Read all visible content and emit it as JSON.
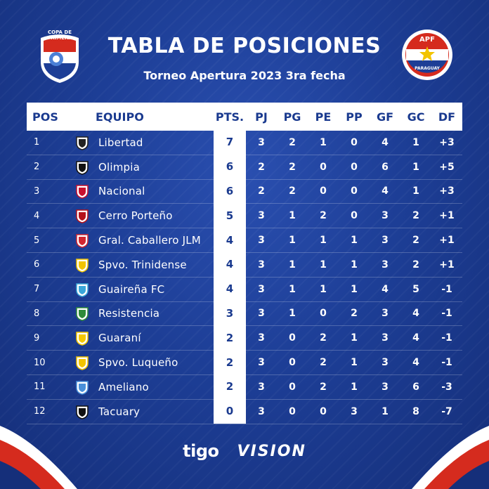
{
  "header": {
    "title": "TABLA DE POSICIONES",
    "subtitle": "Torneo Apertura 2023 3ra fecha",
    "left_logo_text": "COPA DE PRIMERA",
    "right_logo_text_top": "APF",
    "right_logo_text_bottom": "PARAGUAY"
  },
  "columns": {
    "pos": "POS",
    "team": "EQUIPO",
    "pts": "PTS.",
    "pj": "PJ",
    "pg": "PG",
    "pe": "PE",
    "pp": "PP",
    "gf": "GF",
    "gc": "GC",
    "df": "DF"
  },
  "rows": [
    {
      "pos": "1",
      "team": "Libertad",
      "crest_color": "#222222",
      "pts": "7",
      "pj": "3",
      "pg": "2",
      "pe": "1",
      "pp": "0",
      "gf": "4",
      "gc": "1",
      "df": "+3"
    },
    {
      "pos": "2",
      "team": "Olimpia",
      "crest_color": "#111111",
      "pts": "6",
      "pj": "2",
      "pg": "2",
      "pe": "0",
      "pp": "0",
      "gf": "6",
      "gc": "1",
      "df": "+5"
    },
    {
      "pos": "3",
      "team": "Nacional",
      "crest_color": "#c8102e",
      "pts": "6",
      "pj": "2",
      "pg": "2",
      "pe": "0",
      "pp": "0",
      "gf": "4",
      "gc": "1",
      "df": "+3"
    },
    {
      "pos": "4",
      "team": "Cerro Porteño",
      "crest_color": "#b5121b",
      "pts": "5",
      "pj": "3",
      "pg": "1",
      "pe": "2",
      "pp": "0",
      "gf": "3",
      "gc": "2",
      "df": "+1"
    },
    {
      "pos": "5",
      "team": "Gral. Caballero JLM",
      "crest_color": "#d22630",
      "pts": "4",
      "pj": "3",
      "pg": "1",
      "pe": "1",
      "pp": "1",
      "gf": "3",
      "gc": "2",
      "df": "+1"
    },
    {
      "pos": "6",
      "team": "Spvo. Trinidense",
      "crest_color": "#f2c400",
      "pts": "4",
      "pj": "3",
      "pg": "1",
      "pe": "1",
      "pp": "1",
      "gf": "3",
      "gc": "2",
      "df": "+1"
    },
    {
      "pos": "7",
      "team": "Guaireña FC",
      "crest_color": "#3aa6d8",
      "pts": "4",
      "pj": "3",
      "pg": "1",
      "pe": "1",
      "pp": "1",
      "gf": "4",
      "gc": "5",
      "df": "-1"
    },
    {
      "pos": "8",
      "team": "Resistencia",
      "crest_color": "#2e8b3a",
      "pts": "3",
      "pj": "3",
      "pg": "1",
      "pe": "0",
      "pp": "2",
      "gf": "3",
      "gc": "4",
      "df": "-1"
    },
    {
      "pos": "9",
      "team": "Guaraní",
      "crest_color": "#f5c800",
      "pts": "2",
      "pj": "3",
      "pg": "0",
      "pe": "2",
      "pp": "1",
      "gf": "3",
      "gc": "4",
      "df": "-1"
    },
    {
      "pos": "10",
      "team": "Spvo. Luqueño",
      "crest_color": "#f2c400",
      "pts": "2",
      "pj": "3",
      "pg": "0",
      "pe": "2",
      "pp": "1",
      "gf": "3",
      "gc": "4",
      "df": "-1"
    },
    {
      "pos": "11",
      "team": "Ameliano",
      "crest_color": "#4a90d9",
      "pts": "2",
      "pj": "3",
      "pg": "0",
      "pe": "2",
      "pp": "1",
      "gf": "3",
      "gc": "6",
      "df": "-3"
    },
    {
      "pos": "12",
      "team": "Tacuary",
      "crest_color": "#111111",
      "pts": "0",
      "pj": "3",
      "pg": "0",
      "pe": "0",
      "pp": "3",
      "gf": "1",
      "gc": "8",
      "df": "-7"
    }
  ],
  "footer": {
    "sponsor_1": "tigo",
    "sponsor_2": "VISION"
  },
  "colors": {
    "background": "#1d3e96",
    "header_text": "#1a3a8f",
    "accent_red": "#d52b1e"
  }
}
